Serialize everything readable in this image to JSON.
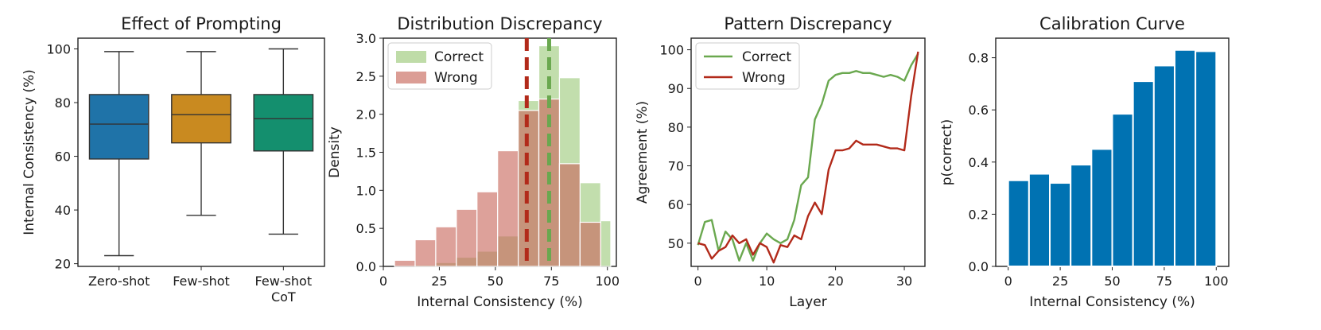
{
  "chart_data": [
    {
      "type": "box",
      "title": "Effect of Prompting",
      "xlabel": "",
      "ylabel": "Internal Consistency (%)",
      "ylim": [
        19,
        104
      ],
      "yticks": [
        20,
        40,
        60,
        80,
        100
      ],
      "categories": [
        {
          "label": "Zero-shot",
          "label_line2": "",
          "color": "#1f73a8",
          "whisker_low": 23,
          "q1": 59,
          "median": 72,
          "q3": 83,
          "whisker_high": 99
        },
        {
          "label": "Few-shot",
          "label_line2": "",
          "color": "#c98a20",
          "whisker_low": 38,
          "q1": 65,
          "median": 75.5,
          "q3": 83,
          "whisker_high": 99
        },
        {
          "label": "Few-shot",
          "label_line2": "CoT",
          "color": "#148f6e",
          "whisker_low": 31,
          "q1": 62,
          "median": 74,
          "q3": 83,
          "whisker_high": 100
        }
      ]
    },
    {
      "type": "histogram",
      "title": "Distribution Discrepancy",
      "xlabel": "Internal Consistency (%)",
      "ylabel": "Density",
      "xlim": [
        0,
        104
      ],
      "ylim": [
        0,
        3.0
      ],
      "xticks": [
        0,
        25,
        50,
        75,
        100
      ],
      "yticks": [
        "0.0",
        "0.5",
        "1.0",
        "1.5",
        "2.0",
        "2.5",
        "3.0"
      ],
      "bin_edges": [
        5,
        14.2,
        23.4,
        32.6,
        41.8,
        51,
        60.2,
        69.4,
        78.6,
        87.8,
        97,
        101.5
      ],
      "series": [
        {
          "name": "Correct",
          "color": "#9cc97a",
          "values": [
            0.0,
            0.02,
            0.05,
            0.12,
            0.2,
            0.4,
            2.18,
            2.9,
            2.48,
            1.1,
            0.6
          ],
          "mean": 74
        },
        {
          "name": "Wrong",
          "color": "#c8685c",
          "values": [
            0.08,
            0.35,
            0.52,
            0.75,
            0.98,
            1.52,
            2.05,
            2.2,
            1.35,
            0.58,
            0.0
          ],
          "mean": 64
        }
      ],
      "legend": "top-left"
    },
    {
      "type": "line",
      "title": "Pattern Discrepancy",
      "xlabel": "Layer",
      "ylabel": "Agreement (%)",
      "xlim": [
        -1,
        33
      ],
      "ylim": [
        44,
        103
      ],
      "xticks": [
        0,
        10,
        20,
        30
      ],
      "yticks": [
        50,
        60,
        70,
        80,
        90,
        100
      ],
      "x": [
        0,
        1,
        2,
        3,
        4,
        5,
        6,
        7,
        8,
        9,
        10,
        11,
        12,
        13,
        14,
        15,
        16,
        17,
        18,
        19,
        20,
        21,
        22,
        23,
        24,
        25,
        26,
        27,
        28,
        29,
        30,
        31,
        32
      ],
      "series": [
        {
          "name": "Correct",
          "color": "#6aa84f",
          "values": [
            49.5,
            55.5,
            56,
            48,
            53,
            51,
            45.5,
            50,
            45.5,
            50,
            52.5,
            51,
            50,
            51,
            56,
            65,
            67,
            82,
            86,
            92,
            93.5,
            94,
            94,
            94.5,
            94,
            94,
            93.5,
            93,
            93.5,
            93,
            92,
            96,
            99
          ]
        },
        {
          "name": "Wrong",
          "color": "#b22a1a",
          "values": [
            50,
            49.5,
            46,
            48,
            49,
            52,
            50,
            51,
            47,
            50,
            49,
            45,
            49.5,
            49,
            52,
            51,
            57,
            60.5,
            57.5,
            69,
            74,
            74,
            74.5,
            76.5,
            75.5,
            75.5,
            75.5,
            75,
            74.5,
            74.5,
            74,
            88,
            99.5
          ]
        }
      ],
      "legend": "top-left"
    },
    {
      "type": "bar",
      "title": "Calibration Curve",
      "xlabel": "Internal Consistency (%)",
      "ylabel": "p(correct)",
      "xlim": [
        -6,
        106
      ],
      "ylim": [
        0,
        0.875
      ],
      "xticks": [
        0,
        25,
        50,
        75,
        100
      ],
      "yticks": [
        "0.0",
        "0.2",
        "0.4",
        "0.6",
        "0.8"
      ],
      "bin_edges": [
        0,
        10,
        20,
        30,
        40,
        50,
        60,
        70,
        80,
        90,
        100
      ],
      "color": "#0072b2",
      "values": [
        0.33,
        0.355,
        0.32,
        0.39,
        0.45,
        0.585,
        0.71,
        0.77,
        0.83,
        0.825
      ]
    }
  ]
}
